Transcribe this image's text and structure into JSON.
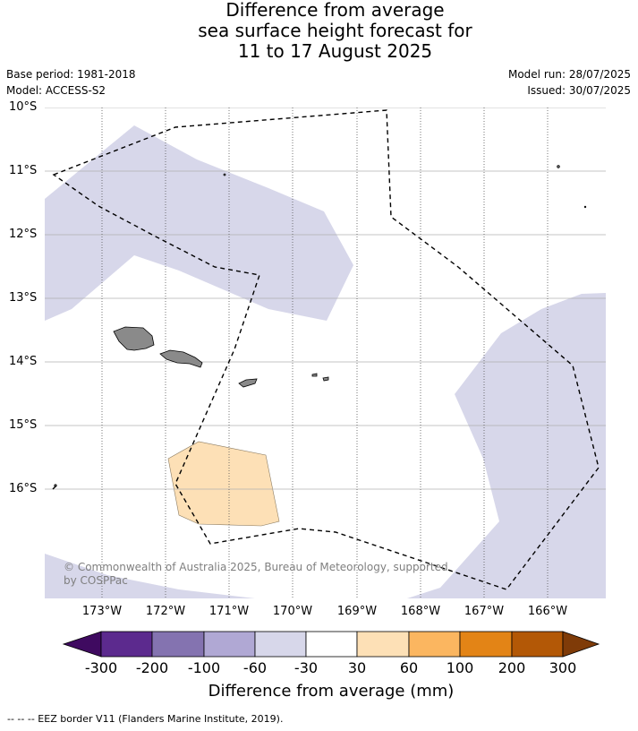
{
  "title": {
    "line1": "Difference from average",
    "line2": "sea surface height forecast for",
    "line3": "11 to 17 August 2025"
  },
  "meta": {
    "base_period": "Base period: 1981-2018",
    "model": "Model: ACCESS-S2",
    "model_run": "Model run: 28/07/2025",
    "issued": "Issued: 30/07/2025"
  },
  "axes": {
    "lat_labels": [
      "10°S",
      "11°S",
      "12°S",
      "13°S",
      "14°S",
      "15°S",
      "16°S"
    ],
    "lon_labels": [
      "173°W",
      "172°W",
      "171°W",
      "170°W",
      "169°W",
      "168°W",
      "167°W",
      "166°W"
    ]
  },
  "colorbar": {
    "title": "Difference from average (mm)",
    "tick_labels": [
      "-300",
      "-200",
      "-100",
      "-60",
      "-30",
      "30",
      "60",
      "100",
      "200",
      "300"
    ],
    "colors": [
      "#3f0a60",
      "#5c2a8e",
      "#8473b0",
      "#b0a8d4",
      "#d7d7ea",
      "#ffffff",
      "#fde0b6",
      "#fbb660",
      "#e38416",
      "#b35806",
      "#7f3b08"
    ]
  },
  "copyright": "© Commonwealth of Australia 2025, Bureau of Meteorology, supported by COSPPac",
  "footer": "--  --  -- EEZ border V11 (Flanders Marine Institute, 2019)."
}
